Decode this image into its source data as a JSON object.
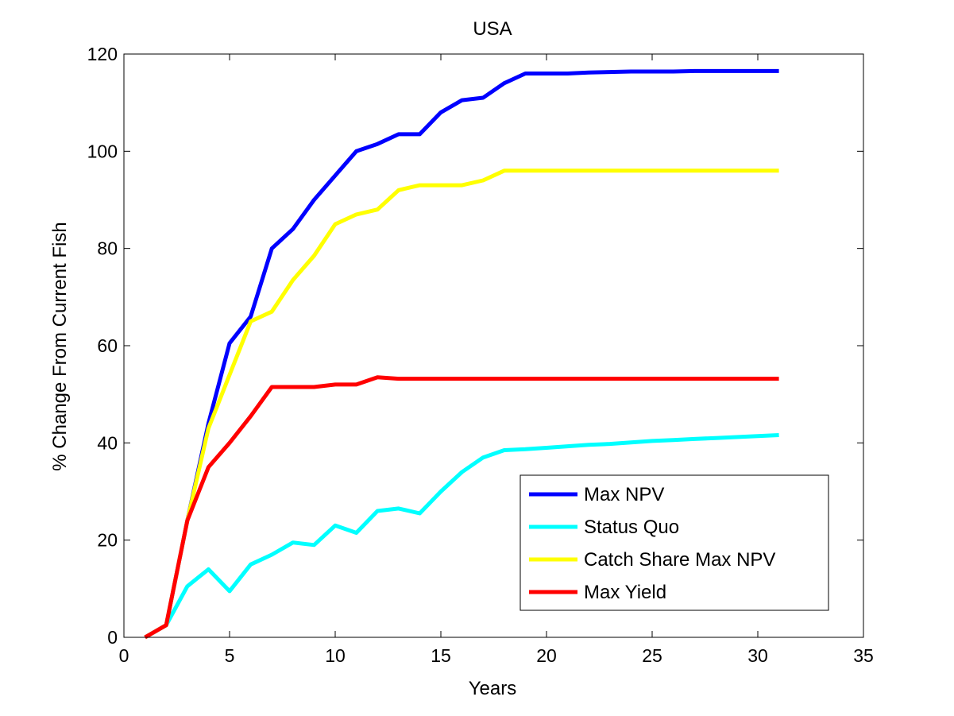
{
  "chart_data": {
    "type": "line",
    "title": "USA",
    "xlabel": "Years",
    "ylabel": "% Change From Current Fish",
    "xlim": [
      0,
      35
    ],
    "ylim": [
      0,
      120
    ],
    "xticks": [
      0,
      5,
      10,
      15,
      20,
      25,
      30,
      35
    ],
    "yticks": [
      0,
      20,
      40,
      60,
      80,
      100,
      120
    ],
    "grid": false,
    "legend_position": "bottom-right",
    "x": [
      1,
      2,
      3,
      4,
      5,
      6,
      7,
      8,
      9,
      10,
      11,
      12,
      13,
      14,
      15,
      16,
      17,
      18,
      19,
      20,
      21,
      22,
      23,
      24,
      25,
      26,
      27,
      28,
      29,
      30,
      31
    ],
    "series": [
      {
        "name": "Max NPV",
        "color": "#0000ff",
        "values": [
          0,
          2.5,
          24,
          44,
          60.5,
          66,
          80,
          84,
          90,
          95,
          100,
          101.5,
          103.5,
          103.5,
          108,
          110.5,
          111,
          114,
          116,
          116,
          116,
          116.2,
          116.3,
          116.4,
          116.4,
          116.4,
          116.5,
          116.5,
          116.5,
          116.5,
          116.5
        ]
      },
      {
        "name": "Status Quo",
        "color": "#00ffff",
        "values": [
          0,
          2.5,
          10.5,
          14,
          9.5,
          15,
          17,
          19.5,
          19,
          23,
          21.5,
          26,
          26.5,
          25.5,
          30,
          34,
          37,
          38.5,
          38.7,
          39,
          39.3,
          39.6,
          39.8,
          40.1,
          40.4,
          40.6,
          40.8,
          41,
          41.2,
          41.4,
          41.6
        ]
      },
      {
        "name": "Catch Share Max NPV",
        "color": "#ffff00",
        "values": [
          0,
          2.5,
          24,
          43,
          54,
          65,
          67,
          73.5,
          78.5,
          85,
          87,
          88,
          92,
          93,
          93,
          93,
          94,
          96,
          96,
          96,
          96,
          96,
          96,
          96,
          96,
          96,
          96,
          96,
          96,
          96,
          96
        ]
      },
      {
        "name": "Max Yield",
        "color": "#ff0000",
        "values": [
          0,
          2.5,
          24,
          35,
          40,
          45.5,
          51.5,
          51.5,
          51.5,
          52,
          52,
          53.5,
          53.2,
          53.2,
          53.2,
          53.2,
          53.2,
          53.2,
          53.2,
          53.2,
          53.2,
          53.2,
          53.2,
          53.2,
          53.2,
          53.2,
          53.2,
          53.2,
          53.2,
          53.2,
          53.2
        ]
      }
    ]
  }
}
